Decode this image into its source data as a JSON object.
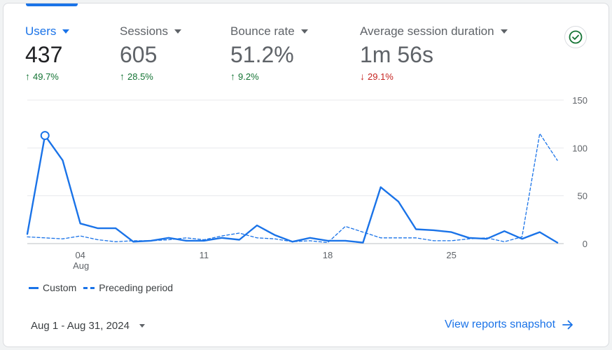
{
  "metrics": [
    {
      "label": "Users",
      "value": "437",
      "delta": "49.7%",
      "direction": "up",
      "active": true
    },
    {
      "label": "Sessions",
      "value": "605",
      "delta": "28.5%",
      "direction": "up",
      "active": false
    },
    {
      "label": "Bounce rate",
      "value": "51.2%",
      "delta": "9.2%",
      "direction": "up",
      "active": false
    },
    {
      "label": "Average session duration",
      "value": "1m 56s",
      "delta": "29.1%",
      "direction": "down",
      "active": false
    }
  ],
  "status_icon": "check-circle-icon",
  "colors": {
    "accent": "#1a73e8",
    "up": "#137333",
    "down": "#c5221f"
  },
  "chart_data": {
    "type": "line",
    "x": [
      1,
      2,
      3,
      4,
      5,
      6,
      7,
      8,
      9,
      10,
      11,
      12,
      13,
      14,
      15,
      16,
      17,
      18,
      19,
      20,
      21,
      22,
      23,
      24,
      25,
      26,
      27,
      28,
      29,
      30,
      31
    ],
    "series": [
      {
        "name": "Custom",
        "style": "solid",
        "values": [
          10,
          113,
          87,
          21,
          16,
          16,
          2,
          3,
          6,
          3,
          3,
          6,
          4,
          19,
          9,
          2,
          6,
          3,
          3,
          1,
          59,
          44,
          15,
          14,
          12,
          6,
          5,
          13,
          5,
          12,
          1
        ]
      },
      {
        "name": "Preceding period",
        "style": "dashed",
        "values": [
          7,
          6,
          5,
          8,
          4,
          2,
          3,
          3,
          4,
          6,
          4,
          8,
          11,
          6,
          5,
          2,
          3,
          1,
          18,
          12,
          6,
          6,
          6,
          3,
          3,
          5,
          6,
          2,
          7,
          115,
          87
        ]
      }
    ],
    "ylim": [
      0,
      150
    ],
    "yticks": [
      0,
      50,
      100,
      150
    ],
    "xticks": [
      {
        "x": 4,
        "label": "04",
        "sublabel": "Aug"
      },
      {
        "x": 11,
        "label": "11",
        "sublabel": ""
      },
      {
        "x": 18,
        "label": "18",
        "sublabel": ""
      },
      {
        "x": 25,
        "label": "25",
        "sublabel": ""
      }
    ],
    "highlight_index": 1,
    "grid": true,
    "legend_position": "bottom-left"
  },
  "footer": {
    "date_range": "Aug 1 - Aug 31, 2024",
    "link_label": "View reports snapshot"
  }
}
